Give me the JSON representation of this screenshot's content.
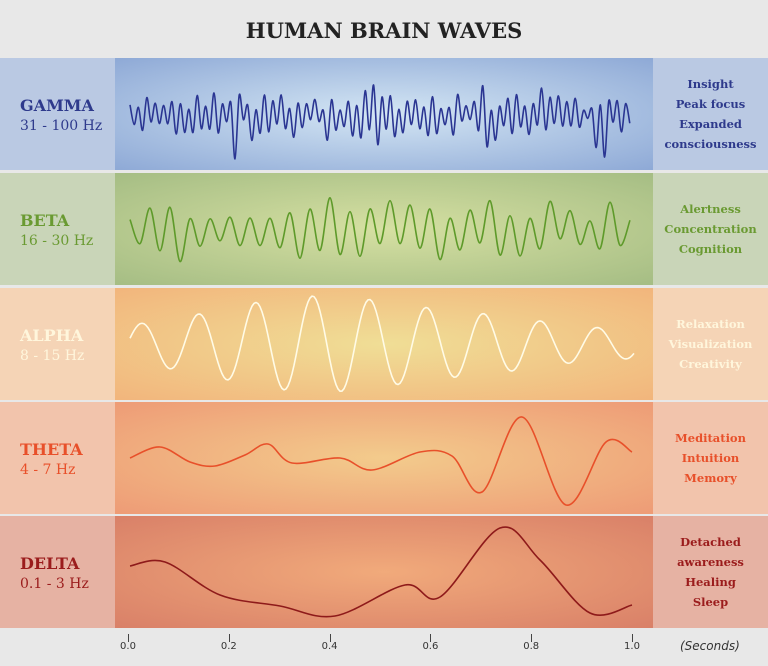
{
  "title": "HUMAN BRAIN WAVES",
  "bands": [
    {
      "name": "GAMMA",
      "range": "31 - 100 Hz",
      "effects": [
        "Insight",
        "Peak focus",
        "Expanded",
        "consciousness"
      ],
      "color": "#2e3a8c",
      "wave_color": "#2a3592",
      "left_bg": "#bac9e3",
      "center_light": "#d4e6f4",
      "center_dark": "#8ea9d6",
      "right_bg": "#bac9e3"
    },
    {
      "name": "BETA",
      "range": "16 - 30 Hz",
      "effects": [
        "Alertness",
        "Concentration",
        "Cognition"
      ],
      "color": "#6a9a32",
      "wave_color": "#5e9a2a",
      "left_bg": "#c9d5b8",
      "center_light": "#d6e0a2",
      "center_dark": "#a5bd84",
      "right_bg": "#c9d5b8"
    },
    {
      "name": "ALPHA",
      "range": "8 - 15 Hz",
      "effects": [
        "Relaxation",
        "Visualization",
        "Creativity"
      ],
      "color": "#fff6dc",
      "wave_color": "#fffbe6",
      "left_bg": "#f5d4b6",
      "center_light": "#f0de96",
      "center_dark": "#f2b57c",
      "right_bg": "#f5d4b6"
    },
    {
      "name": "THETA",
      "range": "4 - 7 Hz",
      "effects": [
        "Meditation",
        "Intuition",
        "Memory"
      ],
      "color": "#e8502a",
      "wave_color": "#e8502a",
      "left_bg": "#f2c4ac",
      "center_light": "#f3cb8c",
      "center_dark": "#ee9b76",
      "right_bg": "#f2c4ac"
    },
    {
      "name": "DELTA",
      "range": "0.1 - 3 Hz",
      "effects": [
        "Detached",
        "awareness",
        "Healing",
        "Sleep"
      ],
      "color": "#9b1c1c",
      "wave_color": "#8e1a1a",
      "left_bg": "#e6b2a3",
      "center_light": "#f1aa7b",
      "center_dark": "#d98068",
      "right_bg": "#e6b2a3"
    }
  ],
  "axis": {
    "ticks": [
      "0.0",
      "0.2",
      "0.4",
      "0.6",
      "0.8",
      "1.0"
    ],
    "unit": "(Seconds)",
    "range": [
      0,
      1
    ]
  }
}
